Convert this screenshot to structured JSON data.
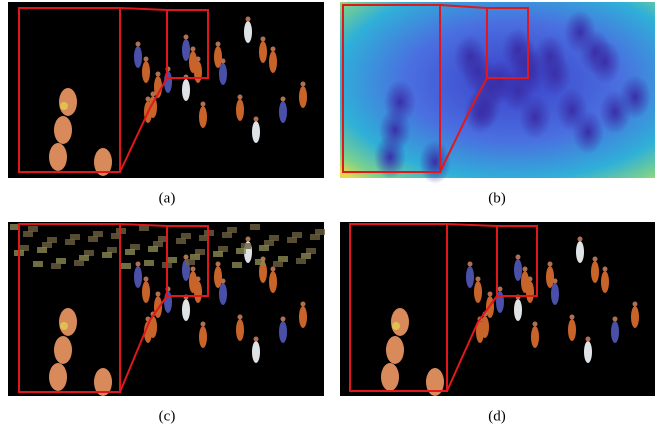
{
  "figure": {
    "panels": [
      {
        "label": "(a)"
      },
      {
        "label": "(b)"
      },
      {
        "label": "(c)"
      },
      {
        "label": "(d)"
      }
    ]
  }
}
